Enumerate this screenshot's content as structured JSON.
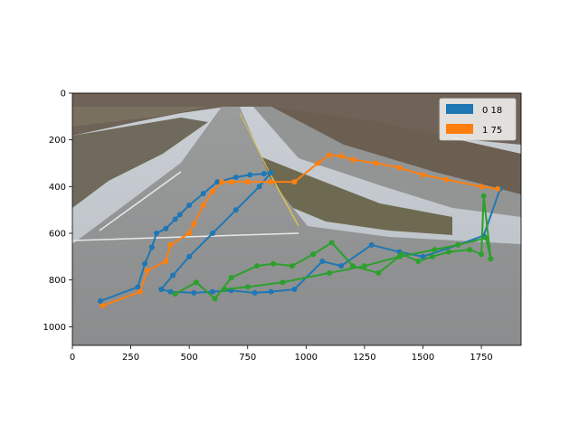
{
  "chart_data": {
    "type": "line",
    "background": "photo-traffic-camera-highway-intersection",
    "xlim": [
      0,
      1920
    ],
    "ylim": [
      1080,
      0
    ],
    "xticks": [
      0,
      250,
      500,
      750,
      1000,
      1250,
      1500,
      1750
    ],
    "yticks": [
      0,
      200,
      400,
      600,
      800,
      1000
    ],
    "legend_position": "upper-right",
    "legend": [
      {
        "label": "0 18",
        "color": "#1f77b4"
      },
      {
        "label": "1 75",
        "color": "#ff7f0e"
      }
    ],
    "series": [
      {
        "name": "0 18",
        "color": "#1f77b4",
        "x": [
          120,
          280,
          310,
          340,
          360,
          400,
          440,
          460,
          500,
          560,
          620,
          700,
          760,
          820,
          850,
          800,
          700,
          600,
          500,
          430,
          380,
          420,
          520,
          600,
          680,
          780,
          850,
          950,
          1070,
          1150,
          1280,
          1400,
          1500,
          1650,
          1760,
          1830
        ],
        "y": [
          890,
          830,
          730,
          660,
          600,
          580,
          540,
          520,
          480,
          430,
          380,
          360,
          350,
          345,
          340,
          400,
          500,
          600,
          700,
          780,
          840,
          850,
          855,
          850,
          845,
          855,
          850,
          840,
          720,
          740,
          650,
          680,
          700,
          650,
          610,
          410
        ]
      },
      {
        "name": "1 75",
        "color": "#ff7f0e",
        "x": [
          130,
          290,
          320,
          400,
          420,
          500,
          520,
          560,
          600,
          640,
          680,
          750,
          850,
          950,
          1050,
          1100,
          1150,
          1200,
          1300,
          1400,
          1500,
          1600,
          1750,
          1820
        ],
        "y": [
          910,
          850,
          760,
          720,
          650,
          600,
          560,
          480,
          420,
          380,
          380,
          380,
          380,
          380,
          300,
          265,
          270,
          285,
          300,
          320,
          350,
          370,
          400,
          410
        ]
      },
      {
        "name": "",
        "color": "#2ca02c",
        "x": [
          440,
          530,
          610,
          680,
          790,
          860,
          940,
          1030,
          1110,
          1200,
          1310,
          1410,
          1480,
          1540,
          1610,
          1700,
          1750,
          1760,
          1790,
          1770,
          1650,
          1550,
          1400,
          1250,
          1100,
          900,
          750,
          650
        ],
        "y": [
          860,
          810,
          880,
          790,
          740,
          730,
          740,
          690,
          640,
          740,
          770,
          690,
          720,
          700,
          680,
          670,
          690,
          440,
          710,
          620,
          650,
          670,
          700,
          740,
          770,
          810,
          830,
          840
        ]
      }
    ]
  }
}
